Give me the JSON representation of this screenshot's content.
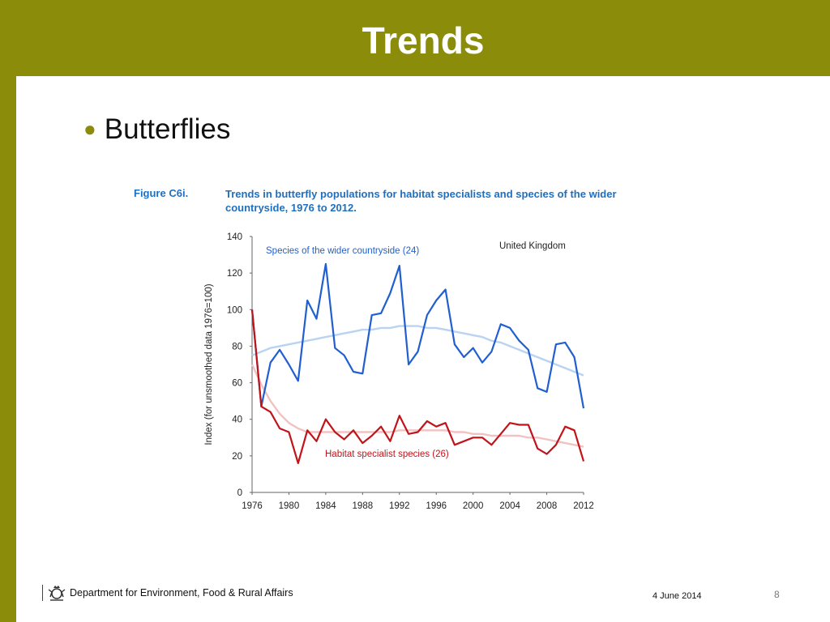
{
  "slide": {
    "title": "Trends",
    "bullet": "Butterflies",
    "figure_label": "Figure C6i.",
    "figure_title": "Trends in butterfly populations for habitat specialists and species of the wider countryside, 1976 to 2012."
  },
  "footer": {
    "department": "Department for Environment, Food & Rural Affairs",
    "date": "4 June 2014",
    "page": "8"
  },
  "colors": {
    "brand_olive": "#8a8c0a",
    "wider_countryside": "#1f5fd0",
    "wider_countryside_smoothed": "#b9d3f0",
    "habitat_specialist": "#c0141a",
    "habitat_specialist_smoothed": "#f2c2c2",
    "figure_text": "#1f6fbf"
  },
  "icons": {
    "crest": "royal-coat-of-arms-icon"
  },
  "chart_data": {
    "type": "line",
    "ylabel": "Index (for unsmoothed data 1976=100)",
    "xlim": [
      1976,
      2012
    ],
    "ylim": [
      0,
      140
    ],
    "x_ticks": [
      "1976",
      "1980",
      "1984",
      "1988",
      "1992",
      "1996",
      "2000",
      "2004",
      "2008",
      "2012"
    ],
    "y_ticks": [
      "0",
      "20",
      "40",
      "60",
      "80",
      "100",
      "120",
      "140"
    ],
    "annotation": "United Kingdom",
    "grid": false,
    "x": [
      1976,
      1977,
      1978,
      1979,
      1980,
      1981,
      1982,
      1983,
      1984,
      1985,
      1986,
      1987,
      1988,
      1989,
      1990,
      1991,
      1992,
      1993,
      1994,
      1995,
      1996,
      1997,
      1998,
      1999,
      2000,
      2001,
      2002,
      2003,
      2004,
      2005,
      2006,
      2007,
      2008,
      2009,
      2010,
      2011,
      2012
    ],
    "series": [
      {
        "name": "Species of the wider countryside (24)",
        "values": [
          100,
          47,
          71,
          78,
          70,
          61,
          105,
          95,
          125,
          79,
          75,
          66,
          65,
          97,
          98,
          109,
          124,
          70,
          77,
          97,
          105,
          111,
          81,
          74,
          79,
          71,
          77,
          92,
          90,
          83,
          78,
          57,
          55,
          81,
          82,
          74,
          46
        ]
      },
      {
        "values": [
          75,
          77,
          79,
          80,
          81,
          82,
          83,
          84,
          85,
          86,
          87,
          88,
          89,
          89,
          90,
          90,
          91,
          91,
          91,
          90,
          90,
          89,
          88,
          87,
          86,
          85,
          83,
          82,
          80,
          78,
          76,
          74,
          72,
          70,
          68,
          66,
          64
        ]
      },
      {
        "name": "Habitat specialist species (26)",
        "values": [
          100,
          47,
          44,
          35,
          33,
          16,
          34,
          28,
          40,
          33,
          29,
          34,
          27,
          31,
          36,
          28,
          42,
          32,
          33,
          39,
          36,
          38,
          26,
          28,
          30,
          30,
          26,
          32,
          38,
          37,
          37,
          24,
          21,
          26,
          36,
          34,
          17
        ]
      },
      {
        "values": [
          70,
          59,
          50,
          43,
          38,
          35,
          33,
          33,
          33,
          33,
          33,
          33,
          33,
          33,
          33,
          33,
          34,
          34,
          34,
          34,
          34,
          34,
          33,
          33,
          32,
          32,
          31,
          31,
          31,
          31,
          30,
          30,
          29,
          28,
          27,
          26,
          25
        ]
      }
    ]
  }
}
